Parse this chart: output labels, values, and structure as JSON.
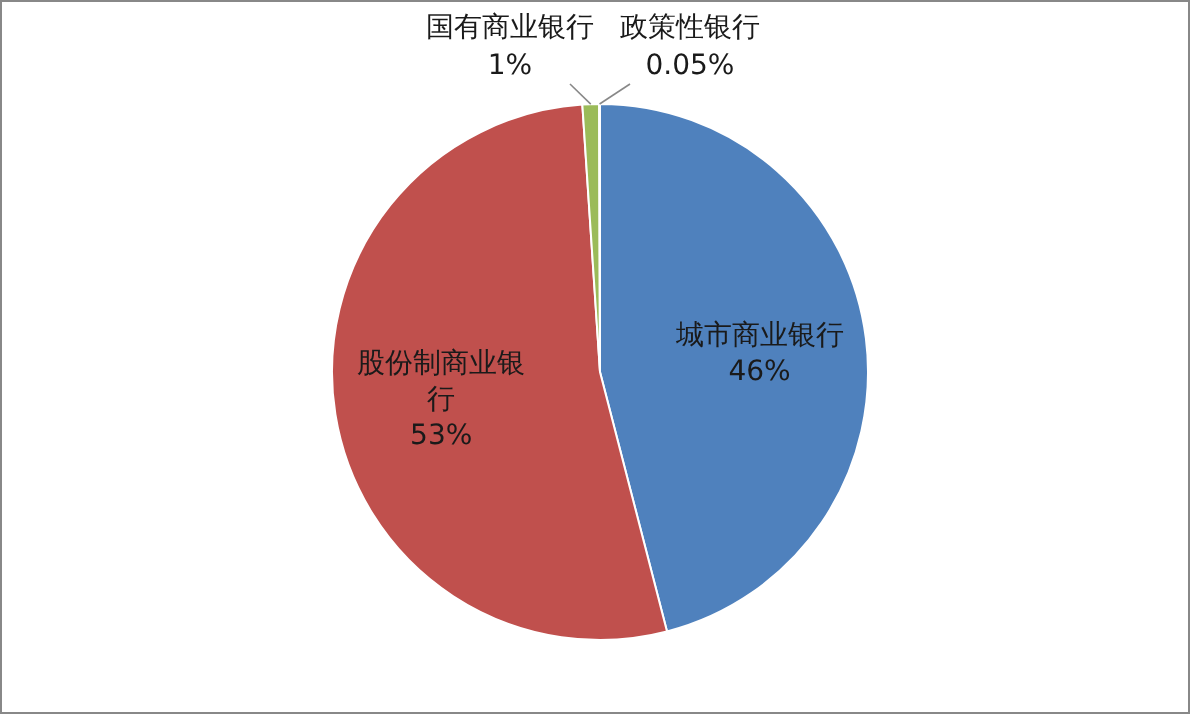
{
  "chart_data": {
    "type": "pie",
    "categories": [
      "城市商业银行",
      "股份制商业银行",
      "国有商业银行",
      "政策性银行"
    ],
    "values": [
      46,
      53,
      1,
      0.05
    ],
    "colors": [
      "#4f81bd",
      "#c0504d",
      "#9bbb59",
      "#8064a2"
    ],
    "value_labels": [
      "46%",
      "53%",
      "1%",
      "0.05%"
    ]
  }
}
